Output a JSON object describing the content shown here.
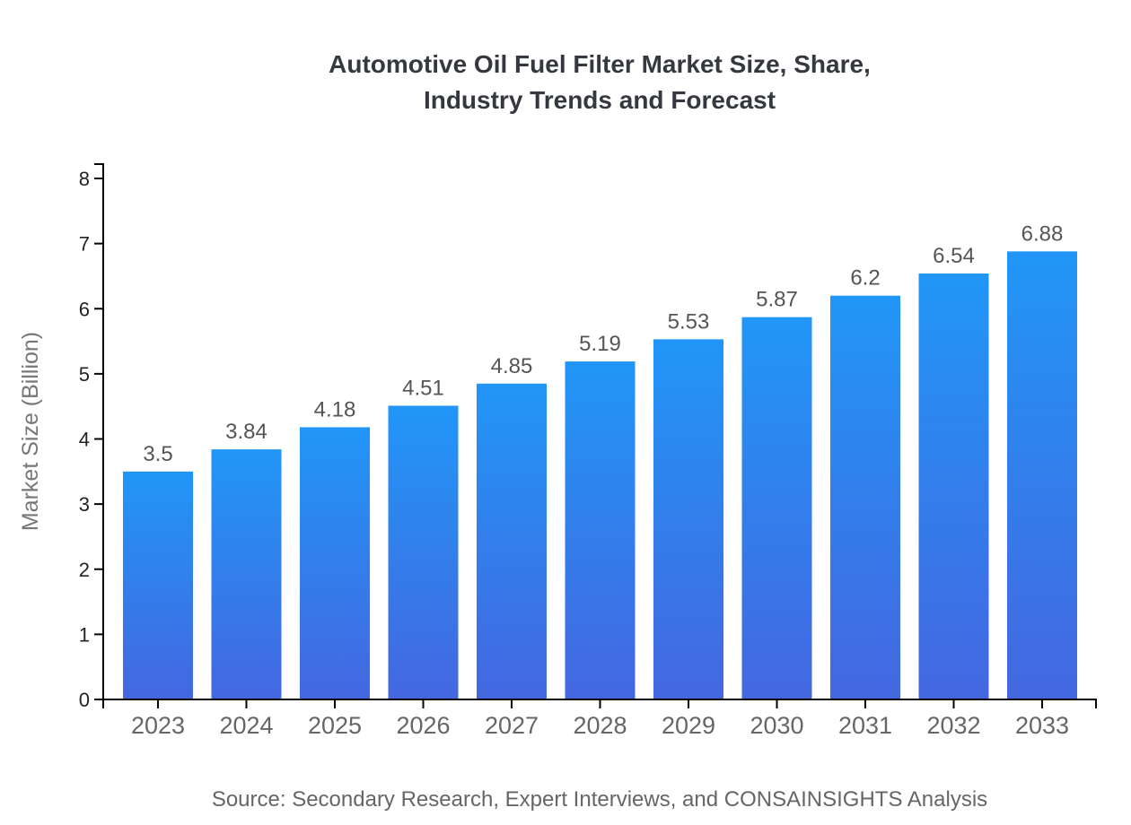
{
  "chart_data": {
    "type": "bar",
    "title_lines": [
      "Automotive Oil Fuel Filter Market Size, Share,",
      "Industry Trends and Forecast"
    ],
    "ylabel": "Market Size (Billion)",
    "xlabel": "",
    "categories": [
      "2023",
      "2024",
      "2025",
      "2026",
      "2027",
      "2028",
      "2029",
      "2030",
      "2031",
      "2032",
      "2033"
    ],
    "values": [
      3.5,
      3.84,
      4.18,
      4.51,
      4.85,
      5.19,
      5.53,
      5.87,
      6.2,
      6.54,
      6.88
    ],
    "value_labels": [
      "3.5",
      "3.84",
      "4.18",
      "4.51",
      "4.85",
      "5.19",
      "5.53",
      "5.87",
      "6.2",
      "6.54",
      "6.88"
    ],
    "ylim": [
      0,
      8
    ],
    "yticks": [
      0,
      1,
      2,
      3,
      4,
      5,
      6,
      7,
      8
    ],
    "grid": false,
    "legend": false,
    "source": "Source: Secondary Research, Expert Interviews, and CONSAINSIGHTS Analysis",
    "colors": {
      "bar_gradient_top": "#2196F8",
      "bar_gradient_bottom": "#4467E0",
      "axis_line": "#000000",
      "y_tick_label": "#222222",
      "x_tick_label": "#666666",
      "value_label": "#555555",
      "title": "#35393F",
      "y_axis_title": "#777777",
      "source": "#666666"
    }
  }
}
